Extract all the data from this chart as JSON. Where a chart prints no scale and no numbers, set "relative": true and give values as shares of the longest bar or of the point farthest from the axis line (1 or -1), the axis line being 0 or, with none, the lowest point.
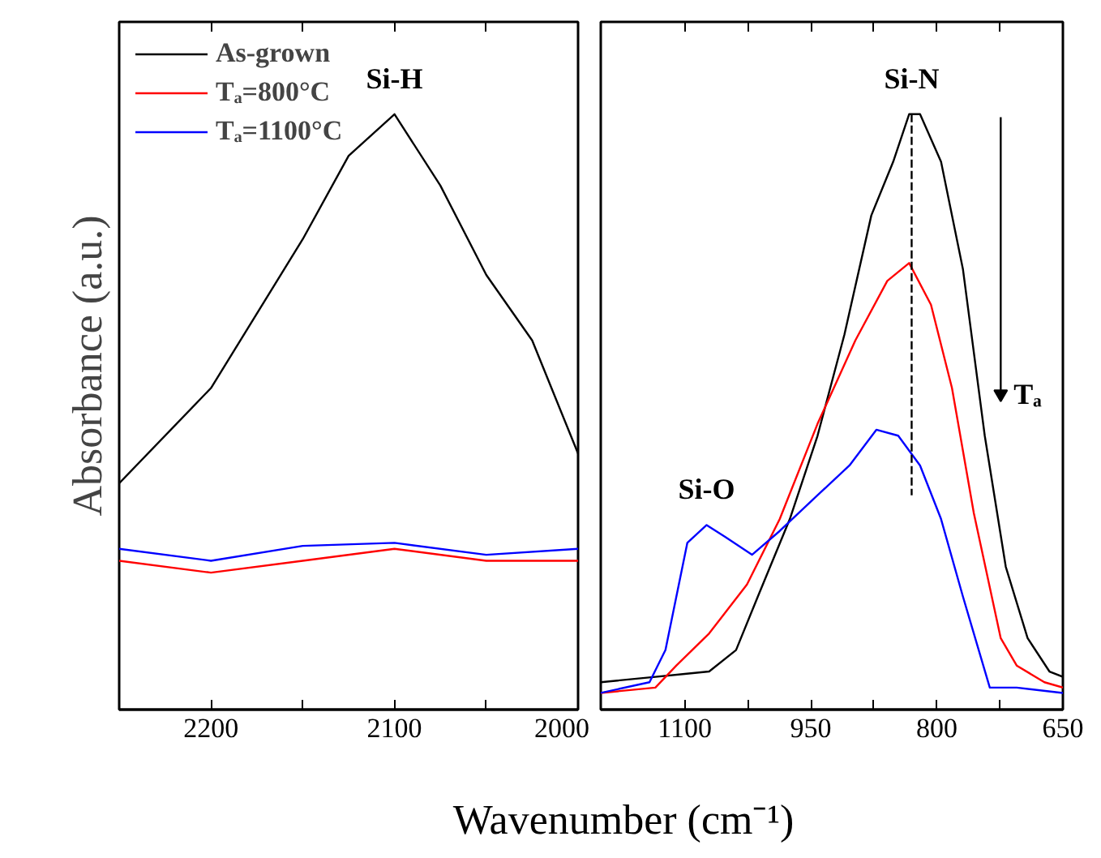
{
  "chart_data": [
    {
      "type": "line",
      "relative": true,
      "ylabel": "Absorbance (a.u.)",
      "xlim": [
        2250,
        2000
      ],
      "xticks": [
        {
          "value": 2250,
          "label": null
        },
        2200,
        {
          "value": 2150,
          "label": null
        },
        2100,
        {
          "value": 2050,
          "label": null
        },
        2000
      ],
      "tick_labels": "x",
      "grid": false,
      "legend": "top left",
      "marker": "none",
      "line_style": "solid",
      "annotations": [
        {
          "text": "Si-H",
          "x": 2100,
          "y": 1.0
        }
      ],
      "series": [
        {
          "name": "As-grown",
          "color": "#000000",
          "x": [
            2250,
            2200,
            2150,
            2125,
            2100,
            2075,
            2050,
            2025,
            2000
          ],
          "values": [
            0.38,
            0.54,
            0.79,
            0.93,
            1.0,
            0.88,
            0.73,
            0.62,
            0.43
          ]
        },
        {
          "name": "Tₐ=800°C",
          "color": "#ff0000",
          "x": [
            2250,
            2200,
            2150,
            2100,
            2050,
            2000
          ],
          "values": [
            0.25,
            0.23,
            0.25,
            0.27,
            0.25,
            0.25
          ]
        },
        {
          "name": "Tₐ=1100°C",
          "color": "#0000ff",
          "x": [
            2250,
            2200,
            2150,
            2100,
            2050,
            2000
          ],
          "values": [
            0.27,
            0.25,
            0.275,
            0.28,
            0.26,
            0.27
          ]
        }
      ]
    },
    {
      "type": "line",
      "relative": true,
      "xlabel": "Wavenumber (cm⁻¹)",
      "xlim": [
        1200,
        650
      ],
      "xticks": [
        1100,
        {
          "value": 1025,
          "label": null
        },
        950,
        {
          "value": 875,
          "label": null
        },
        800,
        {
          "value": 725,
          "label": null
        },
        650
      ],
      "tick_labels": "x",
      "grid": false,
      "marker": "none",
      "line_style": "solid",
      "annotations": [
        {
          "text": "Si-O",
          "x": 1074,
          "y": 0.31
        },
        {
          "text": "Si-N",
          "x": 830,
          "y": 1.0
        },
        {
          "text": "Tₐ",
          "x": 724,
          "y": 0.53
        }
      ],
      "series": [
        {
          "color": "#000000",
          "x": [
            1200,
            1135,
            1100,
            1071,
            1039,
            1013,
            975,
            942,
            910,
            878,
            852,
            833,
            820,
            795,
            769,
            743,
            718,
            692,
            666,
            650
          ],
          "values": [
            0.046,
            0.055,
            0.06,
            0.064,
            0.1,
            0.19,
            0.32,
            0.46,
            0.63,
            0.83,
            0.92,
            1.0,
            1.0,
            0.92,
            0.74,
            0.46,
            0.24,
            0.12,
            0.064,
            0.055
          ]
        },
        {
          "color": "#ff0000",
          "x": [
            1200,
            1135,
            1110,
            1071,
            1026,
            987,
            942,
            897,
            859,
            833,
            807,
            782,
            756,
            724,
            705,
            672,
            650
          ],
          "values": [
            0.028,
            0.037,
            0.074,
            0.128,
            0.21,
            0.32,
            0.48,
            0.62,
            0.72,
            0.75,
            0.68,
            0.54,
            0.33,
            0.12,
            0.074,
            0.046,
            0.037
          ]
        },
        {
          "color": "#0000ff",
          "x": [
            1200,
            1142,
            1123,
            1097,
            1074,
            1052,
            1020,
            987,
            942,
            904,
            872,
            846,
            820,
            795,
            769,
            737,
            705,
            650
          ],
          "values": [
            0.028,
            0.046,
            0.1,
            0.28,
            0.31,
            0.29,
            0.26,
            0.3,
            0.36,
            0.41,
            0.47,
            0.46,
            0.41,
            0.32,
            0.19,
            0.037,
            0.037,
            0.028
          ]
        },
        {
          "color": "#000000",
          "line_style": "dashed",
          "x": [
            830,
            830
          ],
          "values": [
            1.0,
            0.36
          ]
        },
        {
          "color": "#000000",
          "marker": "triangle",
          "x": [
            724,
            724
          ],
          "values": [
            0.995,
            0.53
          ]
        }
      ]
    }
  ]
}
